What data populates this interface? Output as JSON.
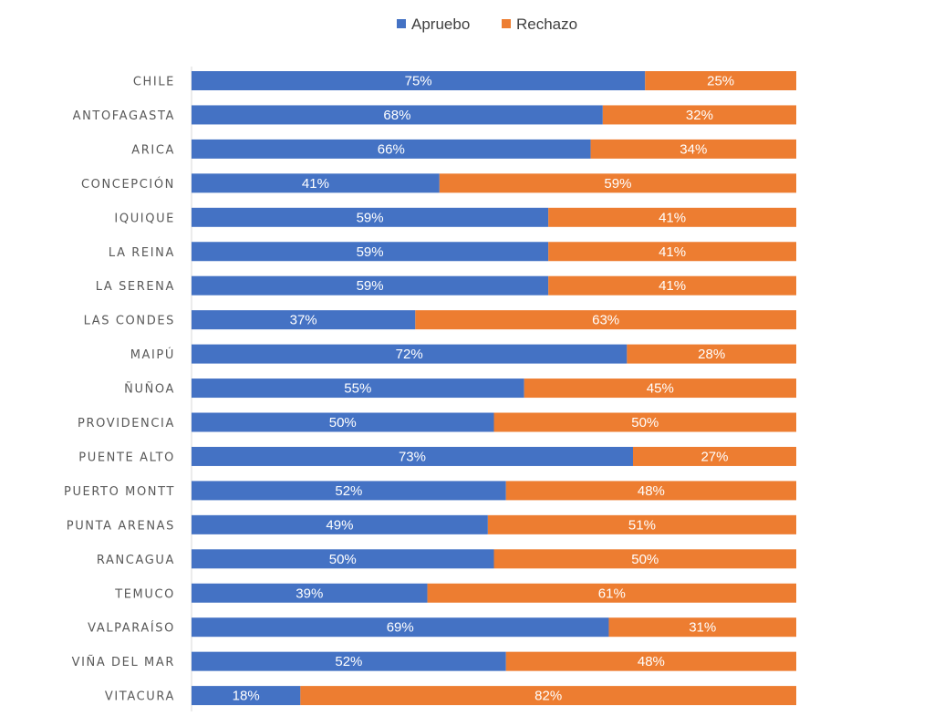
{
  "chart_data": {
    "type": "bar",
    "orientation": "horizontal",
    "stacked": "percent",
    "legend_position": "top",
    "grid": false,
    "xlim": [
      0,
      100
    ],
    "categories": [
      "CHILE",
      "ANTOFAGASTA",
      "ARICA",
      "CONCEPCIÓN",
      "IQUIQUE",
      "LA REINA",
      "LA SERENA",
      "LAS CONDES",
      "MAIPÚ",
      "ÑUÑOA",
      "PROVIDENCIA",
      "PUENTE ALTO",
      "PUERTO MONTT",
      "PUNTA ARENAS",
      "RANCAGUA",
      "TEMUCO",
      "VALPARAÍSO",
      "VIÑA DEL MAR",
      "VITACURA"
    ],
    "series": [
      {
        "name": "Apruebo",
        "color": "#4472C4",
        "values": [
          75,
          68,
          66,
          41,
          59,
          59,
          59,
          37,
          72,
          55,
          50,
          73,
          52,
          49,
          50,
          39,
          69,
          52,
          18
        ]
      },
      {
        "name": "Rechazo",
        "color": "#ED7D31",
        "values": [
          25,
          32,
          34,
          59,
          41,
          41,
          41,
          63,
          28,
          45,
          50,
          27,
          48,
          51,
          50,
          61,
          31,
          48,
          82
        ]
      }
    ],
    "label_suffix": "%"
  }
}
